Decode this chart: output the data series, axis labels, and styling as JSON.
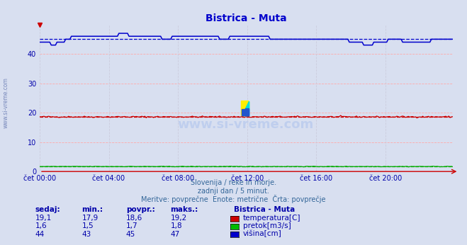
{
  "title": "Bistrica - Muta",
  "bg_color": "#d8dff0",
  "plot_bg_color": "#d8dff0",
  "grid_color_h": "#ffaaaa",
  "grid_color_v": "#ccccdd",
  "xlabel_color": "#0000aa",
  "ylabel_color": "#0000aa",
  "xtick_labels": [
    "čet 00:00",
    "čet 04:00",
    "čet 08:00",
    "čet 12:00",
    "čet 16:00",
    "čet 20:00"
  ],
  "xtick_positions": [
    0,
    48,
    96,
    144,
    192,
    240
  ],
  "ytick_positions": [
    0,
    10,
    20,
    30,
    40
  ],
  "ylim": [
    0,
    50
  ],
  "xlim": [
    0,
    287
  ],
  "n_points": 288,
  "temp_color": "#cc0000",
  "temp_avg": 18.6,
  "temp_min": 17.9,
  "temp_max": 19.2,
  "pretok_color": "#00aa00",
  "pretok_avg": 1.7,
  "pretok_min": 1.5,
  "pretok_max": 1.8,
  "visina_color": "#0000cc",
  "visina_avg": 45,
  "visina_min": 43,
  "visina_max": 47,
  "subtitle1": "Slovenija / reke in morje.",
  "subtitle2": "zadnji dan / 5 minut.",
  "subtitle3": "Meritve: povprečne  Enote: metrične  Črta: povprečje",
  "watermark": "www.si-vreme.com",
  "side_text": "www.si-vreme.com",
  "legend_title": "Bistrica - Muta",
  "legend_items": [
    "temperatura[C]",
    "pretok[m3/s]",
    "višina[cm]"
  ],
  "legend_colors": [
    "#cc0000",
    "#00bb00",
    "#0000cc"
  ],
  "table_headers": [
    "sedaj:",
    "min.:",
    "povpr.:",
    "maks.:"
  ],
  "table_rows": [
    [
      "19,1",
      "17,9",
      "18,6",
      "19,2"
    ],
    [
      "1,6",
      "1,5",
      "1,7",
      "1,8"
    ],
    [
      "44",
      "43",
      "45",
      "47"
    ]
  ],
  "title_color": "#0000cc",
  "table_color": "#0000aa",
  "subtitle_color": "#336699",
  "arrow_color": "#cc0000"
}
